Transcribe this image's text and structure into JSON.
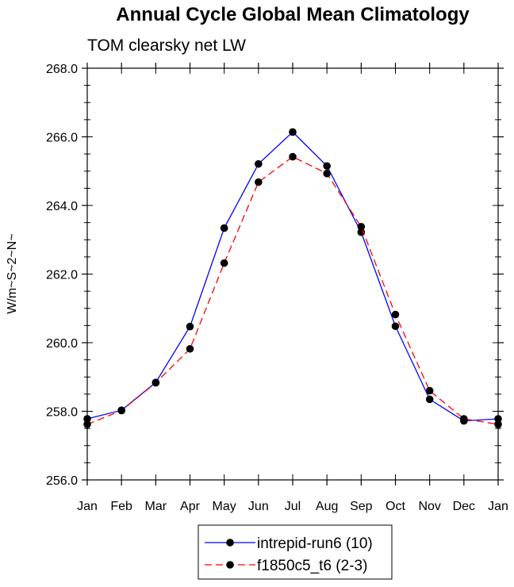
{
  "chart_data": {
    "type": "line",
    "title": "Annual Cycle Global Mean Climatology",
    "subtitle": "TOM clearsky net LW",
    "ylabel": "W/m~S~2~N~",
    "xlabel": "",
    "categories": [
      "Jan",
      "Feb",
      "Mar",
      "Apr",
      "May",
      "Jun",
      "Jul",
      "Aug",
      "Sep",
      "Oct",
      "Nov",
      "Dec",
      "Jan"
    ],
    "ylim": [
      256.0,
      268.0
    ],
    "yticks": [
      "256.0",
      "258.0",
      "260.0",
      "262.0",
      "264.0",
      "266.0",
      "268.0"
    ],
    "grid": false,
    "legend_position": "bottom-center",
    "series": [
      {
        "name": "intrepid-run6 (10)",
        "color": "#0000ff",
        "dash": "solid",
        "values": [
          257.78,
          258.03,
          258.84,
          260.47,
          263.34,
          265.21,
          266.14,
          265.15,
          263.22,
          260.48,
          258.35,
          257.72,
          257.78
        ]
      },
      {
        "name": "f1850c5_t6 (2-3)",
        "color": "#ff0000",
        "dash": "dashed",
        "values": [
          257.62,
          258.02,
          258.83,
          259.82,
          262.32,
          264.68,
          265.42,
          264.93,
          263.38,
          260.82,
          258.6,
          257.78,
          257.62
        ]
      }
    ]
  }
}
